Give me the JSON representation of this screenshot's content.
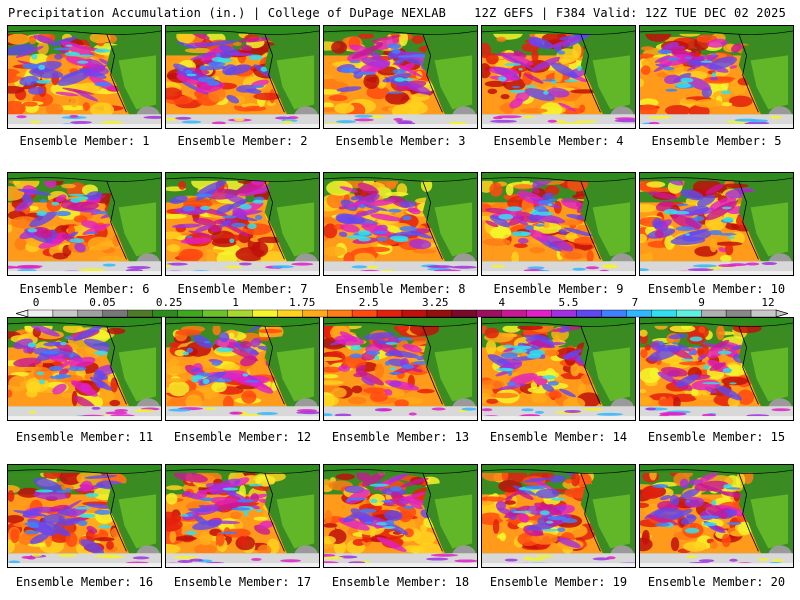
{
  "header": {
    "left": "Precipitation Accumulation (in.) | College of DuPage NEXLAB",
    "right": "12Z GEFS | F384 Valid: 12Z TUE DEC 02 2025"
  },
  "colorbar": {
    "tick_labels": [
      "0",
      "0.05",
      "0.25",
      "1",
      "1.75",
      "2.5",
      "3.25",
      "4",
      "5.5",
      "7",
      "9",
      "12"
    ],
    "colors": [
      "#f0f0f0",
      "#c8c8c8",
      "#a0a0a0",
      "#787878",
      "#4e7a2a",
      "#2e8c1e",
      "#3fa81f",
      "#6cc22a",
      "#a8d830",
      "#f5f52a",
      "#ffd21e",
      "#ffab1a",
      "#ff7d15",
      "#ff4a12",
      "#e4200e",
      "#c0100c",
      "#961010",
      "#7a0a2a",
      "#9c1060",
      "#c81896",
      "#e020c8",
      "#a030e0",
      "#6048f0",
      "#4080ff",
      "#30b8ff",
      "#30e0f0",
      "#60f0e0",
      "#b0b0b0",
      "#888888",
      "#c8c8c8"
    ]
  },
  "panels": [
    {
      "label": "Ensemble Member: 1"
    },
    {
      "label": "Ensemble Member: 2"
    },
    {
      "label": "Ensemble Member: 3"
    },
    {
      "label": "Ensemble Member: 4"
    },
    {
      "label": "Ensemble Member: 5"
    },
    {
      "label": "Ensemble Member: 6"
    },
    {
      "label": "Ensemble Member: 7"
    },
    {
      "label": "Ensemble Member: 8"
    },
    {
      "label": "Ensemble Member: 9"
    },
    {
      "label": "Ensemble Member: 10"
    },
    {
      "label": "Ensemble Member: 11"
    },
    {
      "label": "Ensemble Member: 12"
    },
    {
      "label": "Ensemble Member: 13"
    },
    {
      "label": "Ensemble Member: 14"
    },
    {
      "label": "Ensemble Member: 15"
    },
    {
      "label": "Ensemble Member: 16"
    },
    {
      "label": "Ensemble Member: 17"
    },
    {
      "label": "Ensemble Member: 18"
    },
    {
      "label": "Ensemble Member: 19"
    },
    {
      "label": "Ensemble Member: 20"
    }
  ]
}
